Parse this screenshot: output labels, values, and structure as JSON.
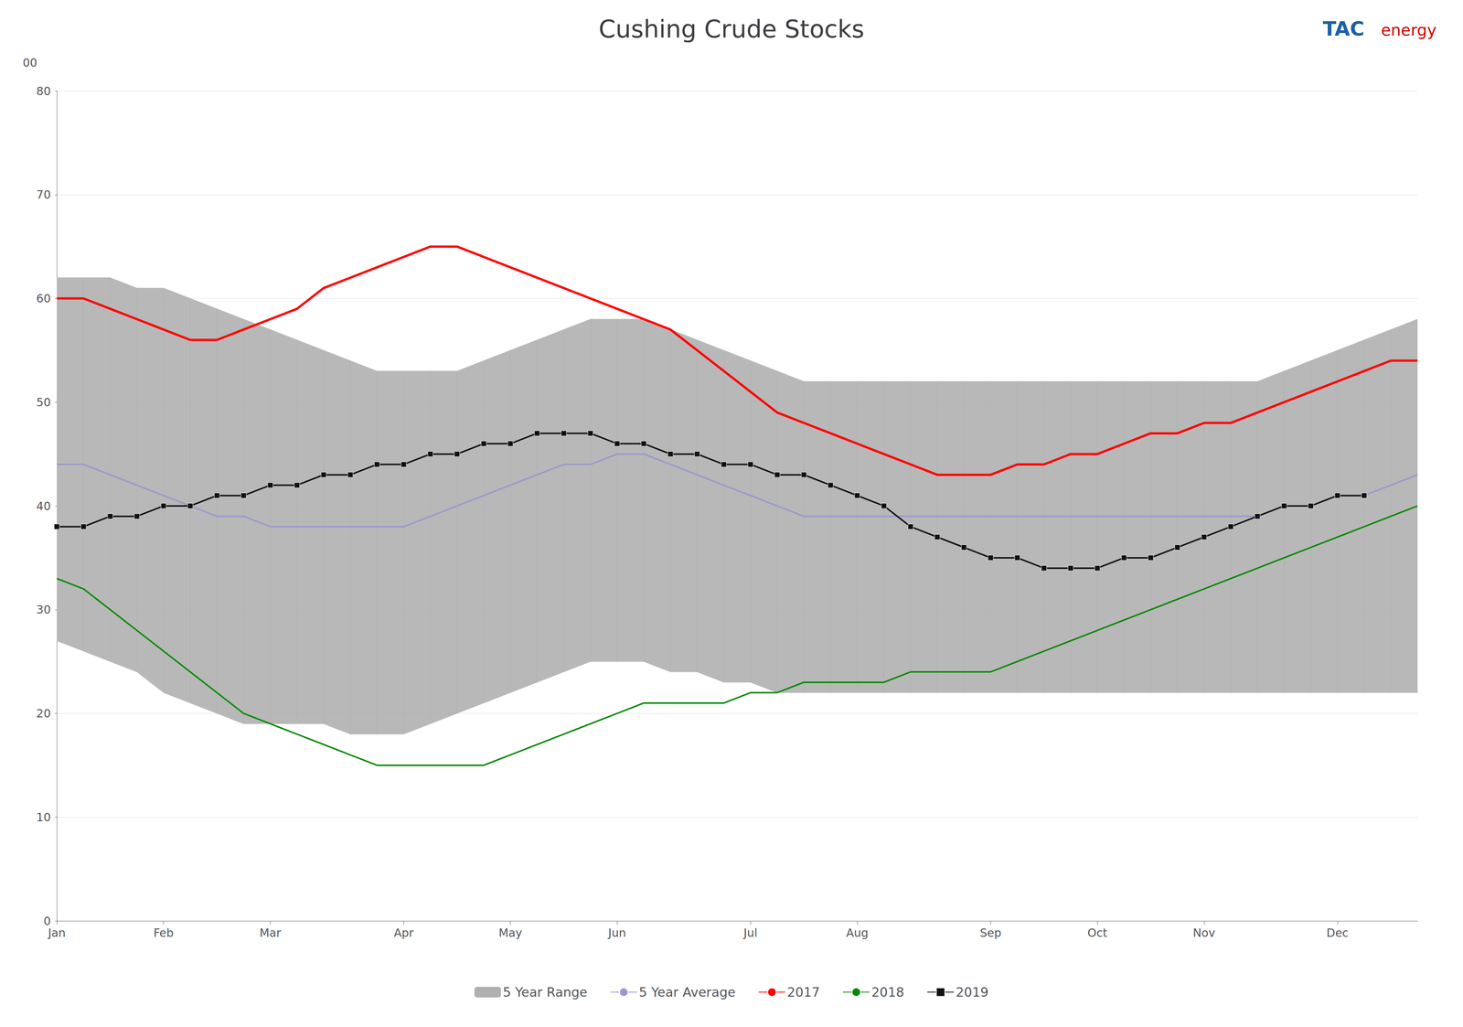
{
  "chart_data": {
    "type": "line",
    "title": "Cushing Crude Stocks",
    "annotations": [
      {
        "text": "TAC",
        "color": "#1a5fa8"
      },
      {
        "text": "energy",
        "color": "#cc0000"
      },
      {
        "text": "00"
      }
    ],
    "x": [
      1,
      2,
      3,
      4,
      5,
      6,
      7,
      8,
      9,
      10,
      11,
      12,
      13,
      14,
      15,
      16,
      17,
      18,
      19,
      20,
      21,
      22,
      23,
      24,
      25,
      26,
      27,
      28,
      29,
      30,
      31,
      32,
      33,
      34,
      35,
      36,
      37,
      38,
      39,
      40,
      41,
      42,
      43,
      44,
      45,
      46,
      47,
      48,
      49,
      50,
      51,
      52
    ],
    "xlim": [
      1,
      52
    ],
    "xticks": [
      {
        "value": 1,
        "label": "Jan"
      },
      {
        "value": 5,
        "label": "Feb"
      },
      {
        "value": 9,
        "label": "Mar"
      },
      {
        "value": 14,
        "label": "Apr"
      },
      {
        "value": 18,
        "label": "May"
      },
      {
        "value": 22,
        "label": "Jun"
      },
      {
        "value": 27,
        "label": "Jul"
      },
      {
        "value": 31,
        "label": "Aug"
      },
      {
        "value": 36,
        "label": "Sep"
      },
      {
        "value": 40,
        "label": "Oct"
      },
      {
        "value": 44,
        "label": "Nov"
      },
      {
        "value": 49,
        "label": "Dec"
      }
    ],
    "ylim": [
      0,
      80
    ],
    "yticks": [
      0,
      10,
      20,
      30,
      40,
      50,
      60,
      70,
      80
    ],
    "grid": true,
    "legend": "bottom",
    "series": [
      {
        "name": "5 Year Range",
        "type": "range",
        "color": "#b0b0b0",
        "lower": [
          27,
          26,
          25,
          24,
          22,
          21,
          20,
          19,
          19,
          19,
          19,
          18,
          18,
          18,
          19,
          20,
          21,
          22,
          23,
          24,
          25,
          25,
          25,
          24,
          24,
          23,
          23,
          22,
          22,
          22,
          22,
          22,
          22,
          22,
          22,
          22,
          22,
          22,
          22,
          22,
          22,
          22,
          22,
          22,
          22,
          22,
          22,
          22,
          22,
          22,
          22,
          22
        ],
        "upper": [
          62,
          62,
          62,
          61,
          61,
          60,
          59,
          58,
          57,
          56,
          55,
          54,
          53,
          53,
          53,
          53,
          54,
          55,
          56,
          57,
          58,
          58,
          58,
          57,
          56,
          55,
          54,
          53,
          52,
          52,
          52,
          52,
          52,
          52,
          52,
          52,
          52,
          52,
          52,
          52,
          52,
          52,
          52,
          52,
          52,
          52,
          53,
          54,
          55,
          56,
          57,
          58
        ]
      },
      {
        "name": "5 Year Average",
        "type": "line",
        "color": "#9999cc",
        "values": [
          44,
          44,
          43,
          42,
          41,
          40,
          39,
          39,
          38,
          38,
          38,
          38,
          38,
          38,
          39,
          40,
          41,
          42,
          43,
          44,
          44,
          45,
          45,
          44,
          43,
          42,
          41,
          40,
          39,
          39,
          39,
          39,
          39,
          39,
          39,
          39,
          39,
          39,
          39,
          39,
          39,
          39,
          39,
          39,
          39,
          39,
          40,
          40,
          41,
          41,
          42,
          43
        ]
      },
      {
        "name": "2017",
        "type": "line",
        "color": "#ff0000",
        "values": [
          60,
          60,
          59,
          58,
          57,
          56,
          56,
          57,
          58,
          59,
          61,
          62,
          63,
          64,
          65,
          65,
          64,
          63,
          62,
          61,
          60,
          59,
          58,
          57,
          55,
          53,
          51,
          49,
          48,
          47,
          46,
          45,
          44,
          43,
          43,
          43,
          44,
          44,
          45,
          45,
          46,
          47,
          47,
          48,
          48,
          49,
          50,
          51,
          52,
          53,
          54,
          54
        ]
      },
      {
        "name": "2018",
        "type": "line",
        "color": "#008800",
        "values": [
          33,
          32,
          30,
          28,
          26,
          24,
          22,
          20,
          19,
          18,
          17,
          16,
          15,
          15,
          15,
          15,
          15,
          16,
          17,
          18,
          19,
          20,
          21,
          21,
          21,
          21,
          22,
          22,
          23,
          23,
          23,
          23,
          24,
          24,
          24,
          24,
          25,
          26,
          27,
          28,
          29,
          30,
          31,
          32,
          33,
          34,
          35,
          36,
          37,
          38,
          39,
          40
        ]
      },
      {
        "name": "2019",
        "type": "line",
        "color": "#111111",
        "marker": "square",
        "values": [
          38,
          38,
          39,
          39,
          40,
          40,
          41,
          41,
          42,
          42,
          43,
          43,
          44,
          44,
          45,
          45,
          46,
          46,
          47,
          47,
          47,
          46,
          46,
          45,
          45,
          44,
          44,
          43,
          43,
          42,
          41,
          40,
          38,
          37,
          36,
          35,
          35,
          34,
          34,
          34,
          35,
          35,
          36,
          37,
          38,
          39,
          40,
          40,
          41,
          41,
          null,
          null
        ]
      }
    ]
  }
}
